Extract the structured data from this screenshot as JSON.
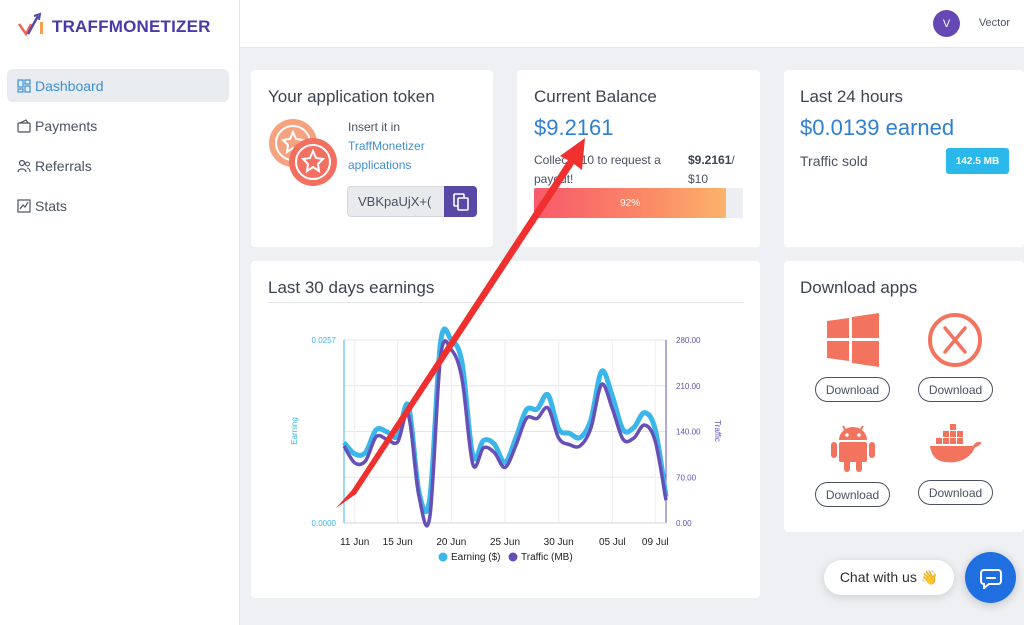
{
  "brand": {
    "name": "TRAFFMONETIZER"
  },
  "sidebar": {
    "items": [
      {
        "label": "Dashboard",
        "icon": "dashboard-icon",
        "active": true
      },
      {
        "label": "Payments",
        "icon": "wallet-icon",
        "active": false
      },
      {
        "label": "Referrals",
        "icon": "users-icon",
        "active": false
      },
      {
        "label": "Stats",
        "icon": "chart-icon",
        "active": false
      }
    ]
  },
  "user": {
    "initial": "V",
    "name": "Vector"
  },
  "token_card": {
    "title": "Your application token",
    "insert_text": "Insert it in",
    "link_text": "TraffMonetizer applications",
    "token_value": "VBKpaUjX+("
  },
  "balance_card": {
    "title": "Current Balance",
    "amount": "$9.2161",
    "collect_text": "Collect $10 to request a payout!",
    "collect_value": "$9.2161",
    "collect_target": "/ $10",
    "progress_percent": 92,
    "progress_label": "92%"
  },
  "last24_card": {
    "title": "Last 24 hours",
    "earned": "$0.0139 earned",
    "traffic_label": "Traffic sold",
    "traffic_value": "142.5 MB"
  },
  "download_card": {
    "title": "Download apps",
    "apps": [
      {
        "name": "windows-icon",
        "button": "Download"
      },
      {
        "name": "macos-icon",
        "button": "Download"
      },
      {
        "name": "android-icon",
        "button": "Download"
      },
      {
        "name": "docker-icon",
        "button": "Download"
      }
    ]
  },
  "chat": {
    "label": "Chat with us 👋"
  },
  "colors": {
    "accent": "#2f80d1",
    "brand": "#5a48a6",
    "earning": "#3ab6ea",
    "traffic": "#6650b8"
  },
  "chart_data": {
    "type": "line",
    "title": "Last 30 days earnings",
    "x": [
      "10 Jun",
      "11 Jun",
      "12 Jun",
      "13 Jun",
      "14 Jun",
      "15 Jun",
      "16 Jun",
      "17 Jun",
      "18 Jun",
      "19 Jun",
      "20 Jun",
      "21 Jun",
      "22 Jun",
      "23 Jun",
      "24 Jun",
      "25 Jun",
      "26 Jun",
      "27 Jun",
      "28 Jun",
      "29 Jun",
      "30 Jun",
      "01 Jul",
      "02 Jul",
      "03 Jul",
      "04 Jul",
      "05 Jul",
      "06 Jul",
      "07 Jul",
      "08 Jul",
      "09 Jul",
      "10 Jul"
    ],
    "xticks": [
      "11 Jun",
      "15 Jun",
      "20 Jun",
      "25 Jun",
      "30 Jun",
      "05 Jul",
      "09 Jul"
    ],
    "series": [
      {
        "name": "Earning ($)",
        "axis": "left",
        "values": [
          0.0113,
          0.0097,
          0.0099,
          0.0131,
          0.0128,
          0.0122,
          0.0165,
          0.0042,
          0.0035,
          0.0254,
          0.0257,
          0.0225,
          0.0095,
          0.0116,
          0.0111,
          0.0085,
          0.0119,
          0.0159,
          0.016,
          0.018,
          0.0132,
          0.0126,
          0.012,
          0.0145,
          0.0213,
          0.0178,
          0.0131,
          0.0134,
          0.0155,
          0.0131,
          0.0037
        ]
      },
      {
        "name": "Traffic (MB)",
        "axis": "right",
        "values": [
          118,
          92,
          95,
          132,
          128,
          124,
          165,
          40,
          10,
          255,
          265,
          220,
          90,
          115,
          108,
          85,
          118,
          160,
          160,
          176,
          130,
          120,
          118,
          145,
          212,
          175,
          128,
          130,
          150,
          125,
          35
        ]
      }
    ],
    "ylabel_left": "Earning",
    "ylabel_right": "Traffic",
    "ylim_left": [
      0,
      0.0257
    ],
    "yticks_left": [
      "0.0000",
      "0.0257"
    ],
    "ylim_right": [
      0,
      280
    ],
    "yticks_right": [
      "0.00",
      "70.00",
      "140.00",
      "210.00",
      "280.00"
    ],
    "legend": "bottom"
  }
}
